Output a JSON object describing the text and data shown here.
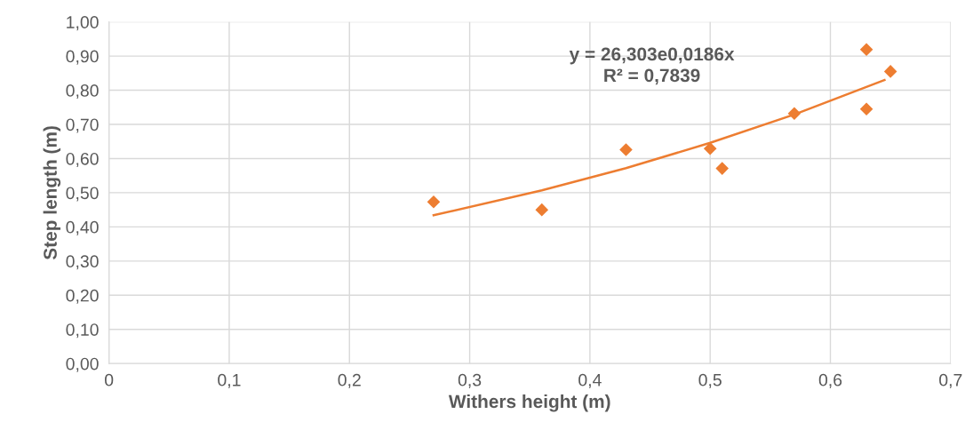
{
  "chart_data": {
    "type": "scatter",
    "xlabel": "Withers height (m)",
    "ylabel": "Step length (m)",
    "annotations": [
      "y = 26,303e0,0186x\nR² = 0,7839"
    ],
    "series": [
      {
        "color": "#ed7d31",
        "marker": "diamond",
        "x": [
          0.27,
          0.36,
          0.43,
          0.5,
          0.51,
          0.57,
          0.63,
          0.63,
          0.65
        ],
        "values": [
          0.473,
          0.45,
          0.626,
          0.629,
          0.571,
          0.732,
          0.919,
          0.745,
          0.855
        ]
      },
      {
        "type": "line",
        "color": "#ed7d31",
        "line_style": "solid",
        "x": [
          0.27,
          0.36,
          0.43,
          0.5,
          0.57,
          0.645
        ],
        "values": [
          0.434,
          0.507,
          0.572,
          0.646,
          0.729,
          0.83
        ]
      }
    ],
    "xlim": [
      0,
      0.7
    ],
    "ylim": [
      0,
      1.0
    ],
    "xticks": [
      0,
      {
        "value": 0.1,
        "label": "0,1"
      },
      {
        "value": 0.2,
        "label": "0,2"
      },
      {
        "value": 0.3,
        "label": "0,3"
      },
      {
        "value": 0.4,
        "label": "0,4"
      },
      {
        "value": 0.5,
        "label": "0,5"
      },
      {
        "value": 0.6,
        "label": "0,6"
      },
      {
        "value": 0.7,
        "label": "0,7"
      }
    ],
    "yticks": [
      {
        "value": 0,
        "label": "0,00"
      },
      {
        "value": 0.1,
        "label": "0,10"
      },
      {
        "value": 0.2,
        "label": "0,20"
      },
      {
        "value": 0.3,
        "label": "0,30"
      },
      {
        "value": 0.4,
        "label": "0,40"
      },
      {
        "value": 0.5,
        "label": "0,50"
      },
      {
        "value": 0.6,
        "label": "0,60"
      },
      {
        "value": 0.7,
        "label": "0,70"
      },
      {
        "value": 0.8,
        "label": "0,80"
      },
      {
        "value": 0.9,
        "label": "0,90"
      },
      {
        "value": 1.0,
        "label": "1,00"
      }
    ],
    "grid": true
  }
}
